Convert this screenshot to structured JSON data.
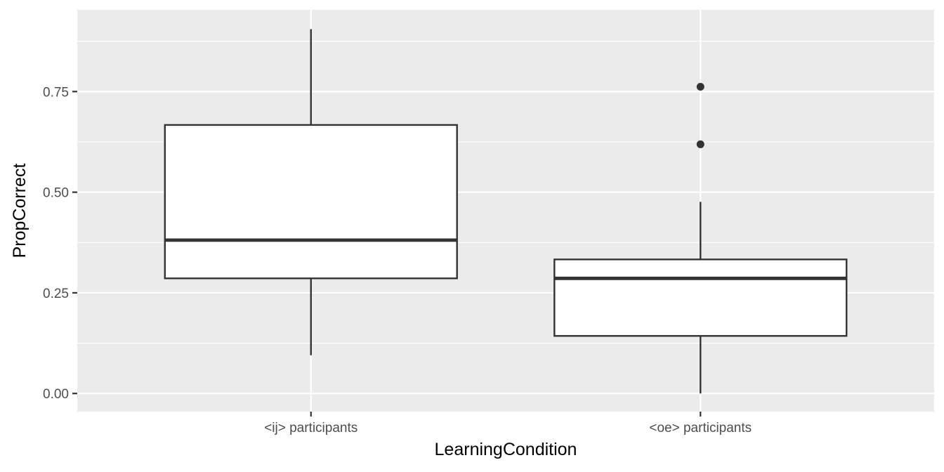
{
  "chart_data": {
    "type": "boxplot",
    "title": "",
    "xlabel": "LearningCondition",
    "ylabel": "PropCorrect",
    "ylim": [
      -0.045,
      0.953
    ],
    "yticks": [
      0.0,
      0.25,
      0.5,
      0.75
    ],
    "ytick_labels": [
      "0.00",
      "0.25",
      "0.50",
      "0.75"
    ],
    "grid": true,
    "legend": "none",
    "colors": {
      "panel": "#ebebeb",
      "grid": "#ffffff",
      "box_fill": "#ffffff",
      "box_line": "#333333",
      "tick_text": "#4d4d4d",
      "title_text": "#000000"
    },
    "categories": [
      "<ij> participants",
      "<oe> participants"
    ],
    "boxes": [
      {
        "category": "<ij> participants",
        "whisker_low": 0.095,
        "q1": 0.286,
        "median": 0.381,
        "q3": 0.667,
        "whisker_high": 0.905,
        "outliers": []
      },
      {
        "category": "<oe> participants",
        "whisker_low": 0.0,
        "q1": 0.143,
        "median": 0.286,
        "q3": 0.333,
        "whisker_high": 0.476,
        "outliers": [
          0.619,
          0.762
        ]
      }
    ]
  }
}
